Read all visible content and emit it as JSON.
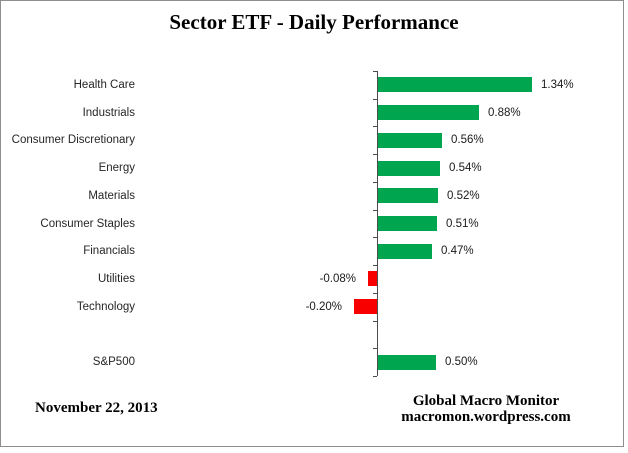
{
  "title": "Sector ETF - Daily Performance",
  "footer": {
    "date": "November 22, 2013",
    "attribution_line1": "Global Macro Monitor",
    "attribution_line2": "macromon.wordpress.com"
  },
  "colors": {
    "positive_bar": "#00A550",
    "negative_bar": "#F80000",
    "axis": "#4d4d4d",
    "border": "#8e8e8e"
  },
  "chart_data": {
    "type": "bar",
    "orientation": "horizontal",
    "title": "Sector ETF - Daily Performance",
    "xlabel": "",
    "ylabel": "",
    "grid": false,
    "legend": false,
    "value_unit": "%",
    "xlim": [
      -0.4,
      2.2
    ],
    "categories": [
      "Health Care",
      "Industrials",
      "Consumer Discretionary",
      "Energy",
      "Materials",
      "Consumer Staples",
      "Financials",
      "Utilities",
      "Technology",
      "",
      "S&P500"
    ],
    "values": [
      1.34,
      0.88,
      0.56,
      0.54,
      0.52,
      0.51,
      0.47,
      -0.08,
      -0.2,
      null,
      0.5
    ],
    "value_labels": [
      "1.34%",
      "0.88%",
      "0.56%",
      "0.54%",
      "0.52%",
      "0.51%",
      "0.47%",
      "-0.08%",
      "-0.20%",
      "",
      "0.50%"
    ]
  }
}
